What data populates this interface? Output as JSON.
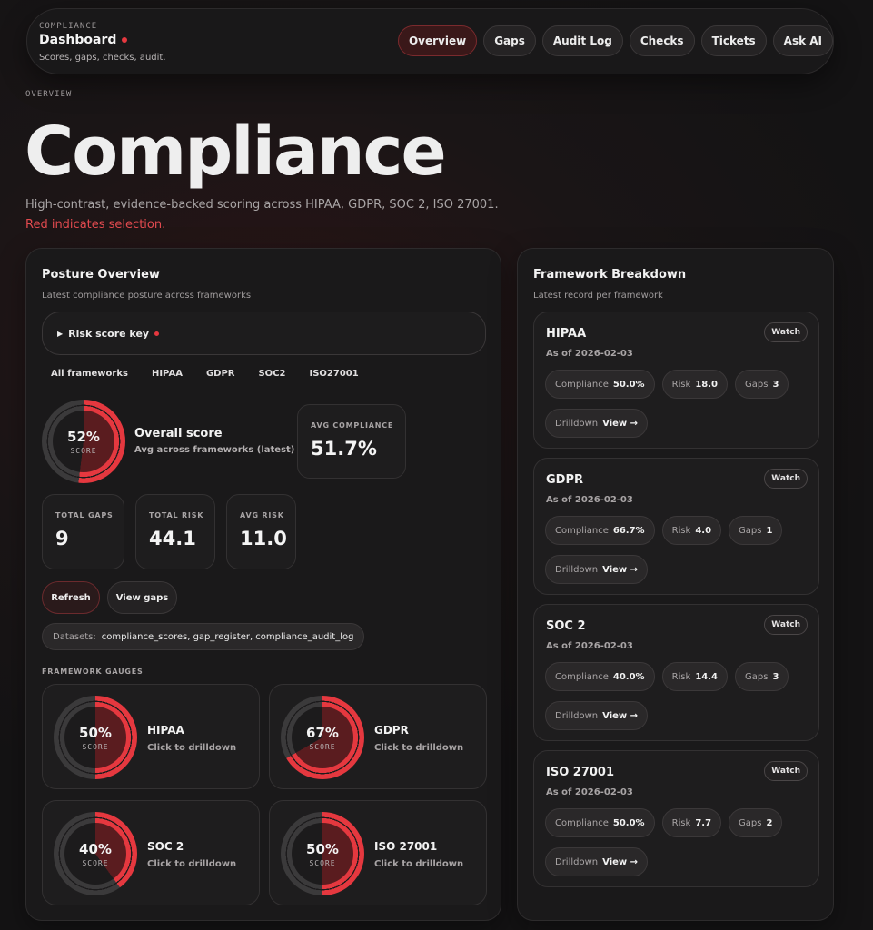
{
  "header": {
    "eyebrow": "COMPLIANCE",
    "title": "Dashboard",
    "subtitle": "Scores, gaps, checks, audit.",
    "nav": [
      "Overview",
      "Gaps",
      "Audit Log",
      "Checks",
      "Tickets",
      "Ask AI"
    ],
    "active_nav": "Overview"
  },
  "hero": {
    "eyebrow": "OVERVIEW",
    "title": "Compliance",
    "description": "High-contrast, evidence-backed scoring across HIPAA, GDPR, SOC 2, ISO 27001.",
    "description_red": "Red indicates selection."
  },
  "posture": {
    "title": "Posture Overview",
    "subtitle": "Latest compliance posture across frameworks",
    "risk_key": "Risk score key",
    "filters": [
      "All frameworks",
      "HIPAA",
      "GDPR",
      "SOC2",
      "ISO27001"
    ],
    "overall": {
      "pct": "52%",
      "value": 0.52,
      "label": "SCORE",
      "title": "Overall score",
      "subtitle": "Avg across frameworks (latest)"
    },
    "avg_compliance": {
      "label": "AVG COMPLIANCE",
      "value": "51.7%"
    },
    "stats": [
      {
        "label": "TOTAL GAPS",
        "value": "9"
      },
      {
        "label": "TOTAL RISK",
        "value": "44.1"
      },
      {
        "label": "AVG RISK",
        "value": "11.0"
      }
    ],
    "refresh_label": "Refresh",
    "view_gaps_label": "View gaps",
    "datasets_label": "Datasets:",
    "datasets_value": "compliance_scores, gap_register, compliance_audit_log",
    "gauges_label": "FRAMEWORK GAUGES",
    "gauges": [
      {
        "name": "HIPAA",
        "pct": "50%",
        "value": 0.5,
        "label": "SCORE",
        "hint": "Click to drilldown"
      },
      {
        "name": "GDPR",
        "pct": "67%",
        "value": 0.667,
        "label": "SCORE",
        "hint": "Click to drilldown"
      },
      {
        "name": "SOC 2",
        "pct": "40%",
        "value": 0.4,
        "label": "SCORE",
        "hint": "Click to drilldown"
      },
      {
        "name": "ISO 27001",
        "pct": "50%",
        "value": 0.5,
        "label": "SCORE",
        "hint": "Click to drilldown"
      }
    ]
  },
  "breakdown": {
    "title": "Framework Breakdown",
    "subtitle": "Latest record per framework",
    "watch_label": "Watch",
    "compliance_label": "Compliance",
    "risk_label": "Risk",
    "gaps_label": "Gaps",
    "drilldown_label": "Drilldown",
    "view_label": "View →",
    "items": [
      {
        "name": "HIPAA",
        "as_of": "As of 2026-02-03",
        "compliance": "50.0%",
        "risk": "18.0",
        "gaps": "3"
      },
      {
        "name": "GDPR",
        "as_of": "As of 2026-02-03",
        "compliance": "66.7%",
        "risk": "4.0",
        "gaps": "1"
      },
      {
        "name": "SOC 2",
        "as_of": "As of 2026-02-03",
        "compliance": "40.0%",
        "risk": "14.4",
        "gaps": "3"
      },
      {
        "name": "ISO 27001",
        "as_of": "As of 2026-02-03",
        "compliance": "50.0%",
        "risk": "7.7",
        "gaps": "2"
      }
    ]
  },
  "colors": {
    "accent": "#e5383f",
    "gauge_track": "#3b3a3b",
    "gauge_fill_bg": "#5a1c1f"
  }
}
